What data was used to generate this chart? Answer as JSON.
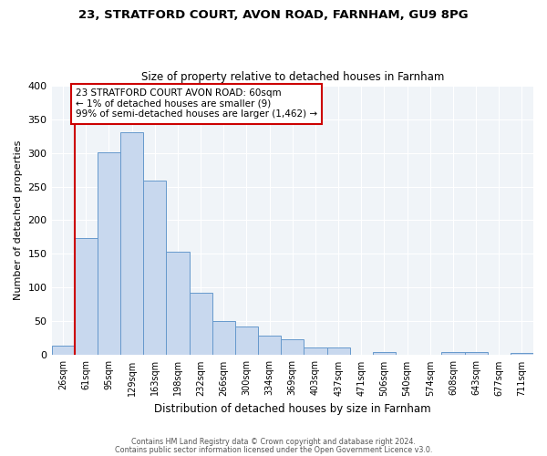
{
  "title": "23, STRATFORD COURT, AVON ROAD, FARNHAM, GU9 8PG",
  "subtitle": "Size of property relative to detached houses in Farnham",
  "xlabel": "Distribution of detached houses by size in Farnham",
  "ylabel": "Number of detached properties",
  "bin_labels": [
    "26sqm",
    "61sqm",
    "95sqm",
    "129sqm",
    "163sqm",
    "198sqm",
    "232sqm",
    "266sqm",
    "300sqm",
    "334sqm",
    "369sqm",
    "403sqm",
    "437sqm",
    "471sqm",
    "506sqm",
    "540sqm",
    "574sqm",
    "608sqm",
    "643sqm",
    "677sqm",
    "711sqm"
  ],
  "bar_values": [
    14,
    174,
    301,
    330,
    259,
    153,
    93,
    50,
    43,
    29,
    23,
    12,
    11,
    0,
    5,
    0,
    0,
    5,
    5,
    0,
    3
  ],
  "bar_color": "#c8d8ee",
  "bar_edge_color": "#6699cc",
  "vline_color": "#cc0000",
  "annotation_text": "23 STRATFORD COURT AVON ROAD: 60sqm\n← 1% of detached houses are smaller (9)\n99% of semi-detached houses are larger (1,462) →",
  "annotation_box_color": "#ffffff",
  "annotation_box_edge_color": "#cc0000",
  "ylim": [
    0,
    400
  ],
  "yticks": [
    0,
    50,
    100,
    150,
    200,
    250,
    300,
    350,
    400
  ],
  "background_color": "#ffffff",
  "plot_bg_color": "#f0f4f8",
  "grid_color": "#ffffff",
  "footnote1": "Contains HM Land Registry data © Crown copyright and database right 2024.",
  "footnote2": "Contains public sector information licensed under the Open Government Licence v3.0."
}
